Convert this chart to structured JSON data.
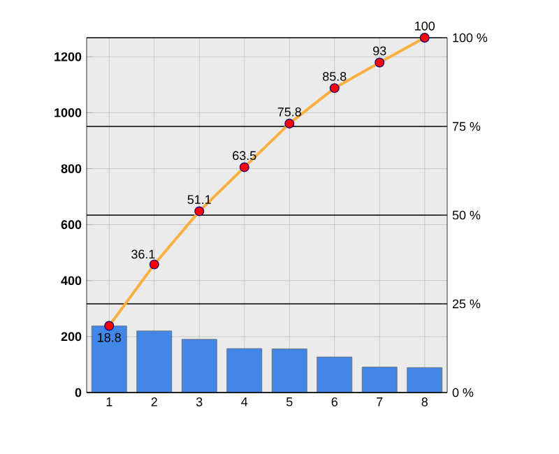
{
  "chart_data": {
    "type": "bar",
    "categories": [
      "1",
      "2",
      "3",
      "4",
      "5",
      "6",
      "7",
      "8"
    ],
    "series": [
      {
        "color": "#4287e8",
        "values": [
          238,
          220,
          190,
          157,
          156,
          127,
          91,
          89
        ]
      },
      {
        "type": "line",
        "axis": "y2",
        "color": "#f9b040",
        "marker": "circle",
        "values": [
          18.8,
          36.1,
          51.1,
          63.5,
          75.8,
          85.8,
          93,
          100
        ],
        "value_labels": [
          "18.8",
          "36.1",
          "51.1",
          "63.5",
          "75.8",
          "85.8",
          "93",
          "100"
        ]
      }
    ],
    "ylim": [
      0,
      1268
    ],
    "yticks": [
      0,
      200,
      400,
      600,
      800,
      1000,
      1200
    ],
    "y2lim": [
      0,
      100
    ],
    "y2ticks": [
      {
        "value": 0,
        "label": "0 %"
      },
      {
        "value": 25,
        "label": "25 %"
      },
      {
        "value": 50,
        "label": "50 %"
      },
      {
        "value": 75,
        "label": "75 %"
      },
      {
        "value": 100,
        "label": "100 %"
      }
    ],
    "grid": true,
    "legend": false
  }
}
